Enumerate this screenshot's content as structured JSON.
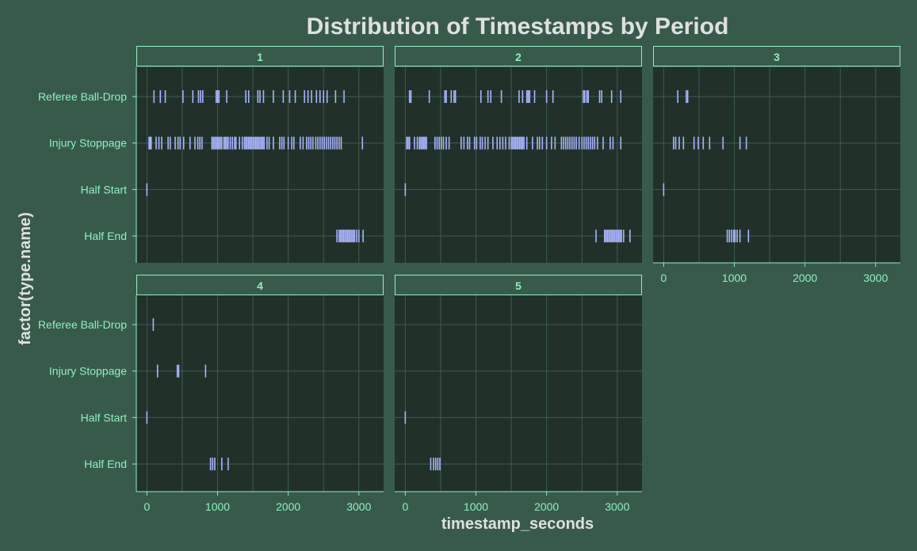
{
  "chart_data": {
    "type": "strip",
    "title": "Distribution of Timestamps by Period",
    "xlabel": "timestamp_seconds",
    "ylabel": "factor(type.name)",
    "xlim": [
      -150,
      3350
    ],
    "x_ticks": [
      0,
      1000,
      2000,
      3000
    ],
    "x_tick_labels": [
      "0",
      "1000",
      "2000",
      "3000"
    ],
    "categories": [
      "Referee Ball-Drop",
      "Injury Stoppage",
      "Half Start",
      "Half End"
    ],
    "grid": true,
    "colors": {
      "background": "#385a4b",
      "panel": "#21312a",
      "grid": "#3d5c50",
      "strip_fill": "#385a4b",
      "strip_border": "#8ff0c0",
      "strip_text": "#8ff0c0",
      "tick_text": "#8ff0c0",
      "title_text": "#e0e0e0",
      "mark": "#aab4ff"
    },
    "facets": [
      {
        "label": "1",
        "series": [
          {
            "name": "Referee Ball-Drop",
            "x": [
              100,
              190,
              260,
              510,
              650,
              730,
              760,
              790,
              980,
              1000,
              1020,
              1130,
              1400,
              1440,
              1570,
              1600,
              1650,
              1790,
              1930,
              2020,
              2100,
              2230,
              2280,
              2330,
              2400,
              2450,
              2500,
              2550,
              2670,
              2790
            ]
          },
          {
            "name": "Injury Stoppage",
            "x": [
              30,
              45,
              60,
              130,
              170,
              210,
              300,
              330,
              400,
              440,
              470,
              520,
              610,
              680,
              720,
              750,
              780,
              920,
              940,
              960,
              980,
              1000,
              1020,
              1040,
              1060,
              1090,
              1110,
              1130,
              1150,
              1180,
              1210,
              1240,
              1260,
              1310,
              1350,
              1380,
              1400,
              1420,
              1440,
              1460,
              1480,
              1500,
              1520,
              1540,
              1560,
              1580,
              1600,
              1620,
              1640,
              1660,
              1700,
              1730,
              1790,
              1880,
              1910,
              1940,
              2000,
              2050,
              2080,
              2170,
              2210,
              2260,
              2290,
              2320,
              2350,
              2390,
              2420,
              2450,
              2480,
              2510,
              2540,
              2570,
              2600,
              2630,
              2660,
              2690,
              2720,
              2750,
              3050
            ]
          },
          {
            "name": "Half Start",
            "x": [
              0
            ]
          },
          {
            "name": "Half End",
            "x": [
              2690,
              2720,
              2740,
              2760,
              2780,
              2800,
              2820,
              2840,
              2860,
              2880,
              2900,
              2920,
              2940,
              2970,
              3000,
              3060
            ]
          }
        ]
      },
      {
        "label": "2",
        "series": [
          {
            "name": "Referee Ball-Drop",
            "x": [
              60,
              80,
              340,
              560,
              580,
              650,
              690,
              710,
              1070,
              1170,
              1210,
              1360,
              1610,
              1660,
              1720,
              1740,
              1760,
              1830,
              2000,
              2090,
              2520,
              2540,
              2570,
              2590,
              2750,
              2780,
              2920,
              3050
            ]
          },
          {
            "name": "Injury Stoppage",
            "x": [
              20,
              40,
              60,
              130,
              170,
              200,
              220,
              240,
              260,
              280,
              300,
              420,
              450,
              480,
              510,
              540,
              580,
              620,
              790,
              830,
              880,
              910,
              980,
              1010,
              1060,
              1090,
              1130,
              1170,
              1240,
              1300,
              1340,
              1380,
              1420,
              1470,
              1500,
              1520,
              1540,
              1560,
              1580,
              1600,
              1620,
              1640,
              1660,
              1680,
              1720,
              1800,
              1870,
              1900,
              1940,
              2000,
              2070,
              2120,
              2210,
              2240,
              2270,
              2300,
              2330,
              2360,
              2390,
              2420,
              2460,
              2500,
              2530,
              2560,
              2590,
              2620,
              2650,
              2680,
              2720,
              2800,
              2900,
              2940,
              3050
            ]
          },
          {
            "name": "Half Start",
            "x": [
              0
            ]
          },
          {
            "name": "Half End",
            "x": [
              2700,
              2820,
              2840,
              2860,
              2880,
              2900,
              2920,
              2940,
              2960,
              2980,
              3000,
              3020,
              3040,
              3060,
              3090,
              3180
            ]
          }
        ]
      },
      {
        "label": "3",
        "series": [
          {
            "name": "Referee Ball-Drop",
            "x": [
              200,
              320,
              340
            ]
          },
          {
            "name": "Injury Stoppage",
            "x": [
              140,
              170,
              220,
              280,
              430,
              490,
              560,
              650,
              840,
              1080,
              1170
            ]
          },
          {
            "name": "Half Start",
            "x": [
              0
            ]
          },
          {
            "name": "Half End",
            "x": [
              900,
              930,
              960,
              990,
              1010,
              1040,
              1080,
              1200
            ]
          }
        ]
      },
      {
        "label": "4",
        "series": [
          {
            "name": "Referee Ball-Drop",
            "x": [
              90
            ]
          },
          {
            "name": "Injury Stoppage",
            "x": [
              150,
              430,
              450,
              830
            ]
          },
          {
            "name": "Half Start",
            "x": [
              0
            ]
          },
          {
            "name": "Half End",
            "x": [
              900,
              930,
              960,
              1060,
              1150
            ]
          }
        ]
      },
      {
        "label": "5",
        "series": [
          {
            "name": "Half Start",
            "x": [
              0
            ]
          },
          {
            "name": "Half End",
            "x": [
              360,
              400,
              430,
              460,
              490
            ]
          }
        ]
      }
    ]
  }
}
